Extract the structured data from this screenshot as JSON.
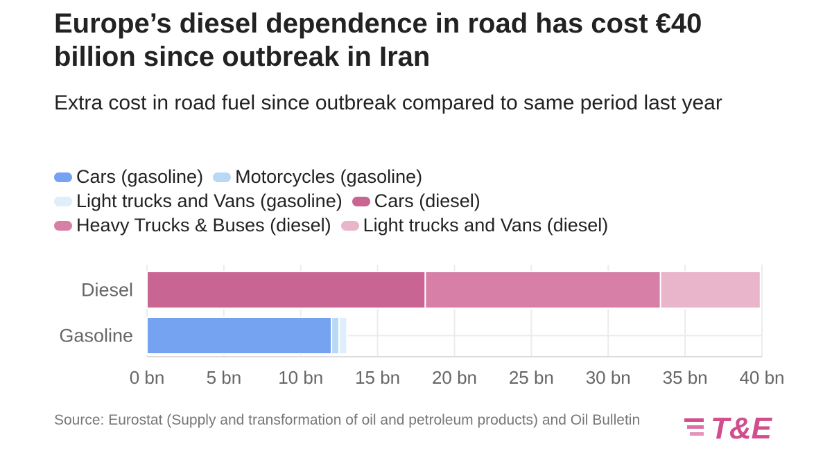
{
  "title": "Europe’s diesel dependence in road has cost €40 billion since outbreak in Iran",
  "subtitle": "Extra cost in road fuel since outbreak compared to same period last year",
  "source": "Source: Eurostat (Supply and transformation of oil and petroleum products) and Oil Bulletin",
  "logo": {
    "text": "T&E",
    "color": "#d24d8c"
  },
  "legend": {
    "rows": [
      [
        {
          "label": "Cars (gasoline)",
          "color": "#75a3f2"
        },
        {
          "label": "Motorcycles (gasoline)",
          "color": "#b9d8f6"
        }
      ],
      [
        {
          "label": "Light trucks and Vans (gasoline)",
          "color": "#dfeefb"
        },
        {
          "label": "Cars (diesel)",
          "color": "#c96592"
        }
      ],
      [
        {
          "label": "Heavy Trucks & Buses (diesel)",
          "color": "#d77fa6"
        },
        {
          "label": "Light trucks and Vans (diesel)",
          "color": "#e8b5cb"
        }
      ]
    ]
  },
  "chart_data": {
    "type": "bar",
    "orientation": "horizontal",
    "stacked": true,
    "categories": [
      "Diesel",
      "Gasoline"
    ],
    "series": [
      {
        "name": "Cars (gasoline)",
        "category": "Gasoline",
        "value": 12.0,
        "color": "#75a3f2"
      },
      {
        "name": "Motorcycles (gasoline)",
        "category": "Gasoline",
        "value": 0.5,
        "color": "#b9d8f6"
      },
      {
        "name": "Light trucks and Vans (gasoline)",
        "category": "Gasoline",
        "value": 0.5,
        "color": "#dfeefb"
      },
      {
        "name": "Cars (diesel)",
        "category": "Diesel",
        "value": 18.1,
        "color": "#c96592"
      },
      {
        "name": "Heavy Trucks & Buses (diesel)",
        "category": "Diesel",
        "value": 15.3,
        "color": "#d77fa6"
      },
      {
        "name": "Light trucks and Vans (diesel)",
        "category": "Diesel",
        "value": 6.5,
        "color": "#e8b5cb"
      }
    ],
    "xlim": [
      0,
      40
    ],
    "xticks": [
      0,
      5,
      10,
      15,
      20,
      25,
      30,
      35,
      40
    ],
    "xtick_labels": [
      "0 bn",
      "5 bn",
      "10 bn",
      "15 bn",
      "20 bn",
      "25 bn",
      "30 bn",
      "35 bn",
      "40 bn"
    ],
    "grid": true,
    "legend_position": "top"
  }
}
